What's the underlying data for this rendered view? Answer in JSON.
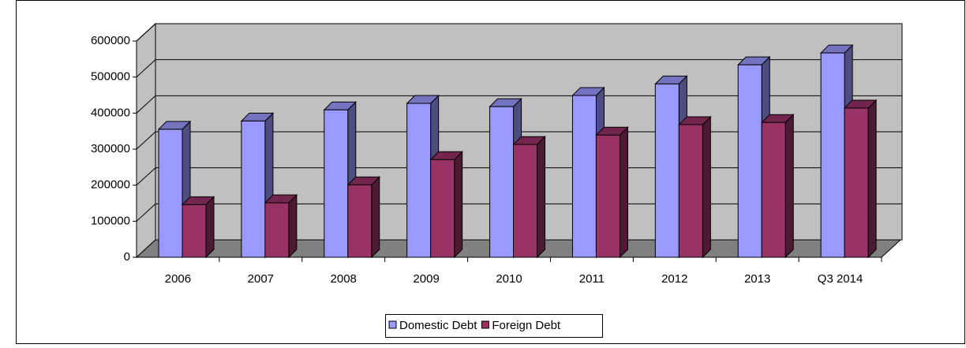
{
  "chart_data": {
    "type": "bar3d",
    "categories": [
      "2006",
      "2007",
      "2008",
      "2009",
      "2010",
      "2011",
      "2012",
      "2013",
      "Q3 2014"
    ],
    "series": [
      {
        "name": "Domestic Debt",
        "color": "#9999ff",
        "values": [
          355000,
          378000,
          409000,
          427000,
          418000,
          449000,
          481000,
          534000,
          567000
        ]
      },
      {
        "name": "Foreign Debt",
        "color": "#993366",
        "values": [
          146000,
          151000,
          201000,
          271000,
          313000,
          339000,
          368000,
          374000,
          414000
        ]
      }
    ],
    "ylim": [
      0,
      600000
    ],
    "yticks": [
      0,
      100000,
      200000,
      300000,
      400000,
      500000,
      600000
    ],
    "grid": true,
    "legend": "bottom"
  }
}
